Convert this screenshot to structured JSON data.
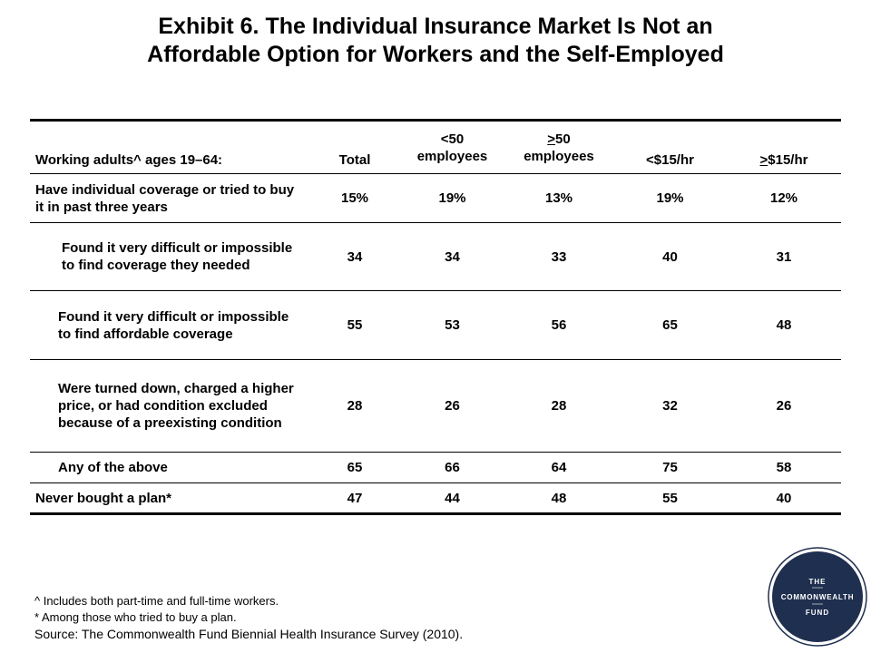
{
  "title": {
    "line1": "Exhibit 6. The Individual Insurance Market Is Not an",
    "line2": "Affordable Option for Workers and the Self-Employed"
  },
  "table": {
    "header": {
      "label": "Working adults^ ages 19–64:",
      "total": "Total",
      "lt50_line1": "<50",
      "lt50_line2": "employees",
      "ge50_sym": ">",
      "ge50_num": "50",
      "ge50_line2": "employees",
      "lt15": "<$15/hr",
      "ge15_sym": ">",
      "ge15_rest": "$15/hr"
    },
    "rows": [
      {
        "label": "Have individual coverage or tried to buy it in past three years",
        "values": [
          "15%",
          "19%",
          "13%",
          "19%",
          "12%"
        ]
      },
      {
        "label": "Found it very difficult or impossible to find coverage they needed",
        "values": [
          "34",
          "34",
          "33",
          "40",
          "31"
        ]
      },
      {
        "label": "Found it very difficult or impossible to find affordable coverage",
        "values": [
          "55",
          "53",
          "56",
          "65",
          "48"
        ]
      },
      {
        "label": "Were turned down, charged a higher price, or had condition excluded  because of a preexisting condition",
        "values": [
          "28",
          "26",
          "28",
          "32",
          "26"
        ]
      },
      {
        "label": "Any of the above",
        "values": [
          "65",
          "66",
          "64",
          "75",
          "58"
        ]
      },
      {
        "label": "Never bought a plan*",
        "values": [
          "47",
          "44",
          "48",
          "55",
          "40"
        ]
      }
    ]
  },
  "footnotes": {
    "note1": "^ Includes both part-time and full-time workers.",
    "note2": "* Among those who tried to buy a plan.",
    "source": "Source: The Commonwealth Fund Biennial Health Insurance Survey (2010)."
  },
  "logo": {
    "line1": "THE",
    "line2": "COMMONWEALTH",
    "line3": "FUND",
    "color": "#1f2f4f"
  }
}
